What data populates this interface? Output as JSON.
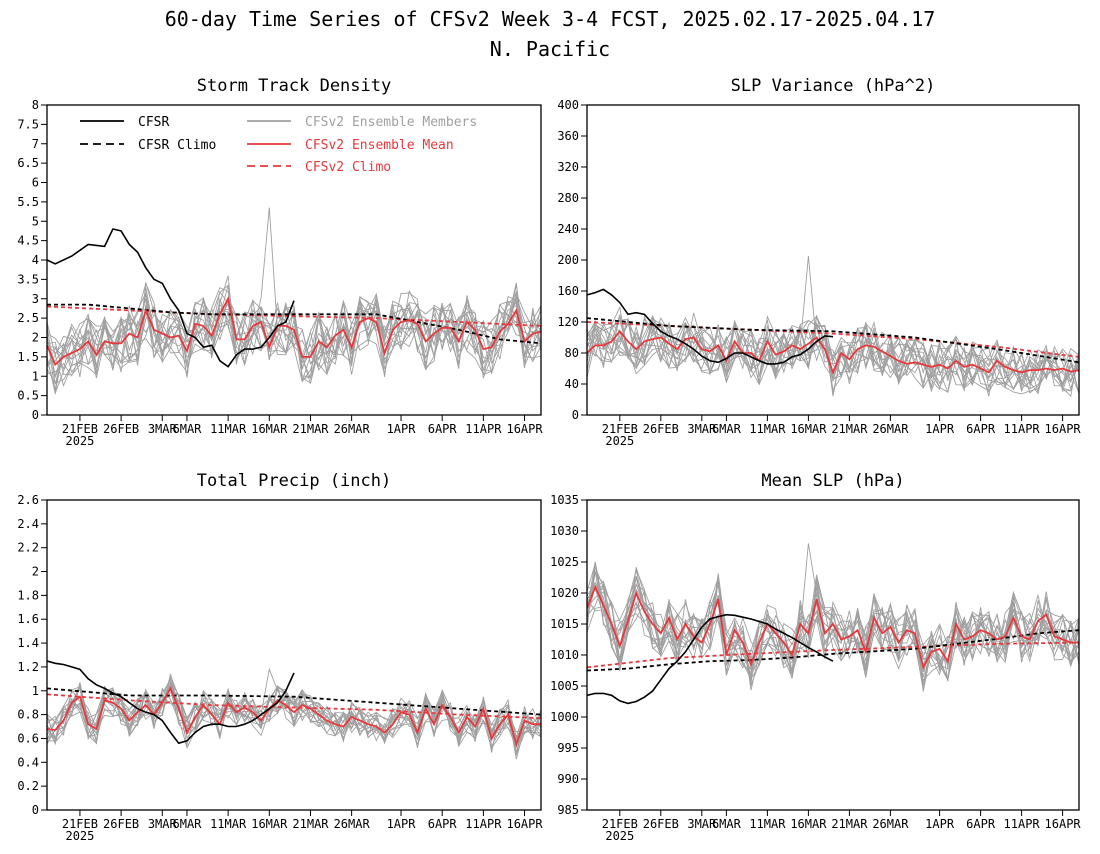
{
  "header": {
    "title": "60-day Time Series of CFSv2 Week 3-4 FCST, 2025.02.17-2025.04.17",
    "subtitle": "N. Pacific"
  },
  "legend": [
    {
      "label": "CFSR",
      "color": "#000000",
      "dash": false
    },
    {
      "label": "CFSR Climo",
      "color": "#000000",
      "dash": true
    },
    {
      "label": "CFSv2 Ensemble Members",
      "color": "#a0a0a0",
      "dash": false
    },
    {
      "label": "CFSv2 Ensemble Mean",
      "color": "#e8383c",
      "dash": false
    },
    {
      "label": "CFSv2 Climo",
      "color": "#e8383c",
      "dash": true
    }
  ],
  "x_ticks": [
    "21FEB",
    "26FEB",
    "3MAR",
    "6MAR",
    "11MAR",
    "16MAR",
    "21MAR",
    "26MAR",
    "1APR",
    "6APR",
    "11APR",
    "16APR"
  ],
  "x_tick_days": [
    4,
    9,
    14,
    17,
    22,
    27,
    32,
    37,
    43,
    48,
    53,
    58
  ],
  "x_year": "2025",
  "chart_data": [
    {
      "type": "line",
      "title": "Storm Track Density",
      "ylim": [
        0,
        8
      ],
      "y_ticks": [
        "0",
        "0.5",
        "1",
        "1.5",
        "2",
        "2.5",
        "3",
        "3.5",
        "4",
        "4.5",
        "5",
        "5.5",
        "6",
        "6.5",
        "7",
        "7.5",
        "8"
      ],
      "x_range_days": [
        0,
        60
      ],
      "series": [
        {
          "name": "CFSR",
          "x": [
            0,
            1,
            3,
            5,
            7,
            8,
            9,
            10,
            11,
            12,
            13,
            14,
            15,
            16,
            17,
            18,
            19,
            20,
            21,
            22,
            23,
            24,
            25,
            26,
            27,
            28,
            29,
            30
          ],
          "y": [
            4.0,
            3.9,
            4.1,
            4.4,
            4.35,
            4.8,
            4.75,
            4.4,
            4.2,
            3.8,
            3.5,
            3.4,
            3.0,
            2.7,
            2.1,
            2.0,
            1.75,
            1.8,
            1.4,
            1.25,
            1.55,
            1.7,
            1.7,
            1.75,
            2.0,
            2.3,
            2.4,
            2.95
          ]
        },
        {
          "name": "CFSR Climo",
          "x": [
            0,
            5,
            10,
            15,
            20,
            25,
            30,
            35,
            40,
            45,
            50,
            55,
            60
          ],
          "y": [
            2.85,
            2.85,
            2.75,
            2.65,
            2.6,
            2.6,
            2.6,
            2.6,
            2.6,
            2.4,
            2.2,
            1.95,
            1.85
          ]
        },
        {
          "name": "CFSv2 Ensemble Mean",
          "x": [
            0,
            1,
            2,
            3,
            4,
            5,
            6,
            7,
            8,
            9,
            10,
            11,
            12,
            13,
            14,
            15,
            16,
            17,
            18,
            19,
            20,
            21,
            22,
            23,
            24,
            25,
            26,
            27,
            28,
            29,
            30,
            31,
            32,
            33,
            34,
            35,
            36,
            37,
            38,
            39,
            40,
            41,
            42,
            43,
            44,
            45,
            46,
            47,
            48,
            49,
            50,
            51,
            52,
            53,
            54,
            55,
            56,
            57,
            58,
            59,
            60
          ],
          "y": [
            1.8,
            1.3,
            1.5,
            1.6,
            1.7,
            1.9,
            1.55,
            1.9,
            1.85,
            1.85,
            2.1,
            2.0,
            2.7,
            2.2,
            2.1,
            2.0,
            2.05,
            1.65,
            2.35,
            2.3,
            2.05,
            2.6,
            3.0,
            1.95,
            1.95,
            2.3,
            2.4,
            1.75,
            2.3,
            2.3,
            2.2,
            1.5,
            1.5,
            1.9,
            1.75,
            2.05,
            2.2,
            1.75,
            2.4,
            2.5,
            2.4,
            1.6,
            2.2,
            2.4,
            2.45,
            2.35,
            1.9,
            2.1,
            2.25,
            2.25,
            1.9,
            2.4,
            2.2,
            1.7,
            1.75,
            2.15,
            2.35,
            2.7,
            1.9,
            2.1,
            2.15
          ]
        },
        {
          "name": "CFSv2 Climo",
          "x": [
            0,
            10,
            20,
            30,
            40,
            50,
            60
          ],
          "y": [
            2.8,
            2.7,
            2.6,
            2.55,
            2.5,
            2.4,
            2.3
          ]
        }
      ],
      "ensemble_members": {
        "count": 16,
        "spread": 0.75,
        "spike_max": 5.35
      }
    },
    {
      "type": "line",
      "title": "SLP Variance (hPa^2)",
      "ylim": [
        0,
        400
      ],
      "y_ticks": [
        "0",
        "40",
        "80",
        "120",
        "160",
        "200",
        "240",
        "280",
        "320",
        "360",
        "400"
      ],
      "x_range_days": [
        0,
        60
      ],
      "series": [
        {
          "name": "CFSR",
          "x": [
            0,
            1,
            2,
            3,
            4,
            5,
            6,
            7,
            8,
            9,
            10,
            11,
            12,
            13,
            14,
            15,
            16,
            17,
            18,
            19,
            20,
            21,
            22,
            23,
            24,
            25,
            26,
            27,
            28,
            29,
            30
          ],
          "y": [
            155,
            158,
            162,
            155,
            145,
            130,
            132,
            130,
            118,
            108,
            102,
            98,
            92,
            85,
            76,
            70,
            68,
            73,
            80,
            80,
            75,
            70,
            66,
            66,
            68,
            75,
            78,
            85,
            95,
            102,
            101
          ]
        },
        {
          "name": "CFSR Climo",
          "x": [
            0,
            10,
            20,
            30,
            40,
            50,
            60
          ],
          "y": [
            125,
            115,
            110,
            108,
            100,
            85,
            68
          ]
        },
        {
          "name": "CFSv2 Ensemble Mean",
          "x": [
            0,
            1,
            2,
            3,
            4,
            5,
            6,
            7,
            8,
            9,
            10,
            11,
            12,
            13,
            14,
            15,
            16,
            17,
            18,
            19,
            20,
            21,
            22,
            23,
            24,
            25,
            26,
            27,
            28,
            29,
            30,
            31,
            32,
            33,
            34,
            35,
            36,
            37,
            38,
            39,
            40,
            41,
            42,
            43,
            44,
            45,
            46,
            47,
            48,
            49,
            50,
            51,
            52,
            53,
            54,
            55,
            56,
            57,
            58,
            59,
            60
          ],
          "y": [
            80,
            90,
            90,
            95,
            108,
            95,
            85,
            95,
            98,
            100,
            92,
            85,
            98,
            100,
            85,
            82,
            90,
            70,
            95,
            80,
            80,
            70,
            95,
            78,
            82,
            90,
            85,
            92,
            100,
            85,
            55,
            80,
            72,
            85,
            90,
            88,
            82,
            76,
            70,
            66,
            68,
            65,
            62,
            65,
            60,
            70,
            62,
            65,
            60,
            55,
            70,
            62,
            58,
            55,
            58,
            58,
            60,
            58,
            60,
            56,
            58
          ]
        },
        {
          "name": "CFSv2 Climo",
          "x": [
            0,
            10,
            20,
            30,
            40,
            50,
            60
          ],
          "y": [
            120,
            115,
            110,
            105,
            98,
            88,
            75
          ]
        }
      ],
      "ensemble_members": {
        "count": 16,
        "spread": 32,
        "spike_max": 205
      }
    },
    {
      "type": "line",
      "title": "Total Precip (inch)",
      "ylim": [
        0,
        2.6
      ],
      "y_ticks": [
        "0",
        "0.2",
        "0.4",
        "0.6",
        "0.8",
        "1",
        "1.2",
        "1.4",
        "1.6",
        "1.8",
        "2",
        "2.2",
        "2.4",
        "2.6"
      ],
      "x_range_days": [
        0,
        60
      ],
      "series": [
        {
          "name": "CFSR",
          "x": [
            0,
            1,
            2,
            3,
            4,
            5,
            6,
            7,
            8,
            9,
            10,
            11,
            12,
            13,
            14,
            15,
            16,
            17,
            18,
            19,
            20,
            21,
            22,
            23,
            24,
            25,
            26,
            27,
            28,
            29,
            30
          ],
          "y": [
            1.25,
            1.23,
            1.22,
            1.2,
            1.18,
            1.1,
            1.05,
            1.02,
            0.98,
            0.95,
            0.9,
            0.85,
            0.82,
            0.8,
            0.75,
            0.65,
            0.56,
            0.58,
            0.65,
            0.7,
            0.72,
            0.72,
            0.7,
            0.7,
            0.72,
            0.75,
            0.8,
            0.85,
            0.9,
            1.0,
            1.15
          ]
        },
        {
          "name": "CFSR Climo",
          "x": [
            0,
            10,
            20,
            30,
            40,
            50,
            60
          ],
          "y": [
            1.02,
            0.96,
            0.96,
            0.95,
            0.9,
            0.85,
            0.8
          ]
        },
        {
          "name": "CFSv2 Ensemble Mean",
          "x": [
            0,
            1,
            2,
            3,
            4,
            5,
            6,
            7,
            8,
            9,
            10,
            11,
            12,
            13,
            14,
            15,
            16,
            17,
            18,
            19,
            20,
            21,
            22,
            23,
            24,
            25,
            26,
            27,
            28,
            29,
            30,
            31,
            32,
            33,
            34,
            35,
            36,
            37,
            38,
            39,
            40,
            41,
            42,
            43,
            44,
            45,
            46,
            47,
            48,
            49,
            50,
            51,
            52,
            53,
            54,
            55,
            56,
            57,
            58,
            59,
            60
          ],
          "y": [
            0.68,
            0.67,
            0.75,
            0.9,
            0.95,
            0.72,
            0.68,
            0.92,
            0.9,
            0.85,
            0.75,
            0.82,
            0.88,
            0.8,
            0.9,
            1.02,
            0.85,
            0.65,
            0.78,
            0.88,
            0.8,
            0.72,
            0.9,
            0.82,
            0.86,
            0.82,
            0.75,
            0.85,
            0.92,
            0.88,
            0.82,
            0.88,
            0.85,
            0.8,
            0.75,
            0.72,
            0.7,
            0.78,
            0.75,
            0.72,
            0.7,
            0.65,
            0.72,
            0.82,
            0.8,
            0.65,
            0.85,
            0.72,
            0.88,
            0.78,
            0.65,
            0.78,
            0.7,
            0.85,
            0.6,
            0.72,
            0.8,
            0.55,
            0.75,
            0.72,
            0.72
          ]
        },
        {
          "name": "CFSv2 Climo",
          "x": [
            0,
            10,
            20,
            30,
            40,
            50,
            60
          ],
          "y": [
            0.97,
            0.92,
            0.88,
            0.86,
            0.84,
            0.8,
            0.77
          ]
        }
      ],
      "ensemble_members": {
        "count": 16,
        "spread": 0.13,
        "spike_max": 1.18
      }
    },
    {
      "type": "line",
      "title": "Mean SLP (hPa)",
      "ylim": [
        985,
        1035
      ],
      "y_ticks": [
        "985",
        "990",
        "995",
        "1000",
        "1005",
        "1010",
        "1015",
        "1020",
        "1025",
        "1030",
        "1035"
      ],
      "x_range_days": [
        0,
        60
      ],
      "series": [
        {
          "name": "CFSR",
          "x": [
            0,
            1,
            2,
            3,
            4,
            5,
            6,
            7,
            8,
            9,
            10,
            11,
            12,
            13,
            14,
            15,
            16,
            17,
            18,
            19,
            20,
            21,
            22,
            23,
            24,
            25,
            26,
            27,
            28,
            29,
            30
          ],
          "y": [
            1003.5,
            1003.8,
            1003.8,
            1003.5,
            1002.6,
            1002.2,
            1002.5,
            1003.2,
            1004.2,
            1006,
            1007.8,
            1009,
            1010.5,
            1012.5,
            1014.5,
            1015.8,
            1016.2,
            1016.5,
            1016.4,
            1016.1,
            1015.8,
            1015.4,
            1015,
            1014.2,
            1013.5,
            1012.8,
            1012,
            1011.2,
            1010.5,
            1009.7,
            1009
          ]
        },
        {
          "name": "CFSR Climo",
          "x": [
            0,
            5,
            10,
            15,
            20,
            25,
            30,
            35,
            40,
            45,
            50,
            55,
            60
          ],
          "y": [
            1007.5,
            1007.8,
            1008.5,
            1009,
            1009.2,
            1009.6,
            1010.2,
            1010.6,
            1011,
            1011.8,
            1012.6,
            1013.5,
            1014
          ]
        },
        {
          "name": "CFSv2 Ensemble Mean",
          "x": [
            0,
            1,
            2,
            3,
            4,
            5,
            6,
            7,
            8,
            9,
            10,
            11,
            12,
            13,
            14,
            15,
            16,
            17,
            18,
            19,
            20,
            21,
            22,
            23,
            24,
            25,
            26,
            27,
            28,
            29,
            30,
            31,
            32,
            33,
            34,
            35,
            36,
            37,
            38,
            39,
            40,
            41,
            42,
            43,
            44,
            45,
            46,
            47,
            48,
            49,
            50,
            51,
            52,
            53,
            54,
            55,
            56,
            57,
            58,
            59,
            60
          ],
          "y": [
            1017.5,
            1021,
            1018,
            1015,
            1011.5,
            1015.5,
            1020,
            1017,
            1015,
            1013.5,
            1016,
            1012.5,
            1015,
            1013,
            1012,
            1015,
            1019,
            1010,
            1014,
            1012,
            1008.5,
            1012,
            1015,
            1013.5,
            1012,
            1010,
            1015,
            1013.5,
            1019,
            1013.5,
            1015,
            1012.5,
            1013,
            1014,
            1010.5,
            1016,
            1013.5,
            1014.5,
            1012,
            1014,
            1013.5,
            1008,
            1010.5,
            1011,
            1009,
            1015,
            1012.5,
            1013,
            1014,
            1013.5,
            1012.5,
            1013,
            1016,
            1013,
            1012.5,
            1015.5,
            1016.5,
            1013,
            1012.5,
            1012,
            1012
          ]
        },
        {
          "name": "CFSv2 Climo",
          "x": [
            0,
            10,
            20,
            30,
            40,
            50,
            60
          ],
          "y": [
            1008,
            1009.5,
            1010.2,
            1010.8,
            1011.3,
            1011.8,
            1012
          ]
        }
      ],
      "ensemble_members": {
        "count": 16,
        "spread": 4.2,
        "spike_max": 1028
      }
    }
  ]
}
